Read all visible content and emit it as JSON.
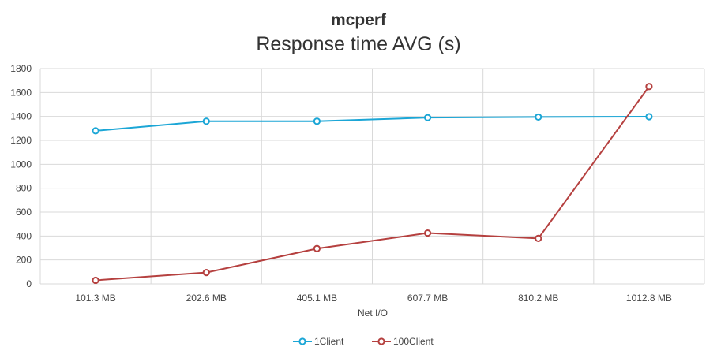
{
  "chart_data": {
    "type": "line",
    "title": "mcperf",
    "subtitle": "Response time AVG (s)",
    "xlabel": "Net I/O",
    "ylabel": "",
    "categories": [
      "101.3 MB",
      "202.6 MB",
      "405.1 MB",
      "607.7 MB",
      "810.2 MB",
      "1012.8 MB"
    ],
    "ylim": [
      0,
      1800
    ],
    "yticks": [
      0,
      200,
      400,
      600,
      800,
      1000,
      1200,
      1400,
      1600,
      1800
    ],
    "grid": true,
    "legend": "bottom",
    "series": [
      {
        "name": "1Client",
        "color": "#1ba6d6",
        "values": [
          1280,
          1360,
          1360,
          1390,
          1395,
          1398
        ]
      },
      {
        "name": "100Client",
        "color": "#b5403f",
        "values": [
          30,
          95,
          295,
          425,
          380,
          1650
        ]
      }
    ]
  }
}
